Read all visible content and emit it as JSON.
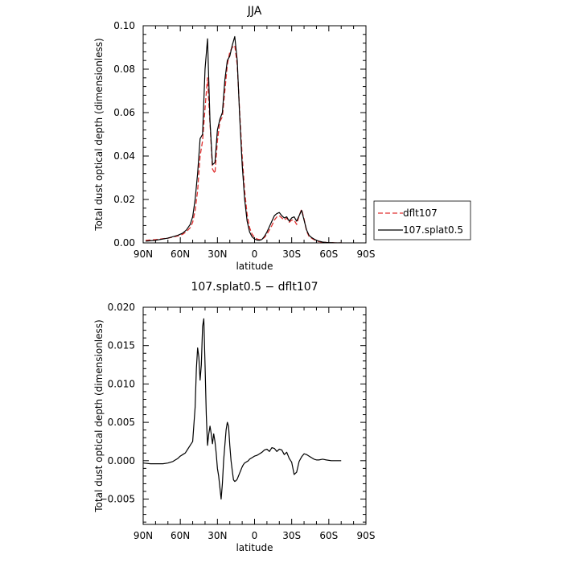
{
  "chart_data": [
    {
      "type": "line",
      "title": "JJA",
      "xlabel": "latitude",
      "ylabel": "Total dust optical depth (dimensionless)",
      "xlim": [
        90,
        -90
      ],
      "ylim": [
        0,
        0.1
      ],
      "x_ticks": [
        90,
        60,
        30,
        0,
        -30,
        -60,
        -90
      ],
      "x_tick_labels": [
        "90N",
        "60N",
        "30N",
        "0",
        "30S",
        "60S",
        "90S"
      ],
      "y_ticks": [
        0,
        0.02,
        0.04,
        0.06,
        0.08,
        0.1
      ],
      "y_tick_labels": [
        "0.00",
        "0.02",
        "0.04",
        "0.06",
        "0.08",
        "0.10"
      ],
      "legend": "right",
      "series": [
        {
          "name": "dflt107",
          "color": "#e03030",
          "style": "dashed",
          "x": [
            88,
            80,
            70,
            62,
            58,
            55,
            52,
            50,
            48,
            46,
            44,
            42,
            40,
            38,
            36,
            34,
            32,
            30,
            28,
            26,
            24,
            22,
            20,
            18,
            16,
            14,
            12,
            10,
            8,
            6,
            4,
            2,
            0,
            -2,
            -4,
            -6,
            -8,
            -10,
            -12,
            -14,
            -16,
            -18,
            -20,
            -22,
            -24,
            -26,
            -28,
            -30,
            -32,
            -34,
            -36,
            -38,
            -40,
            -42,
            -44,
            -46,
            -48,
            -50,
            -52,
            -55,
            -58,
            -60,
            -62,
            -65,
            -68,
            -70
          ],
          "y": [
            0.0012,
            0.0015,
            0.0022,
            0.0032,
            0.004,
            0.0052,
            0.007,
            0.0095,
            0.015,
            0.024,
            0.04,
            0.047,
            0.062,
            0.076,
            0.055,
            0.034,
            0.032,
            0.047,
            0.056,
            0.058,
            0.07,
            0.082,
            0.088,
            0.09,
            0.091,
            0.082,
            0.06,
            0.04,
            0.024,
            0.013,
            0.007,
            0.004,
            0.0025,
            0.0018,
            0.0015,
            0.0017,
            0.0025,
            0.004,
            0.006,
            0.008,
            0.0105,
            0.012,
            0.0125,
            0.0115,
            0.0105,
            0.0115,
            0.0095,
            0.0105,
            0.0105,
            0.0085,
            0.0125,
            0.0155,
            0.011,
            0.0055,
            0.003,
            0.0022,
            0.0015,
            0.001,
            0.0006,
            0.0003,
            0.0002,
            0.0001,
            0.0001,
            0,
            0,
            0
          ]
        },
        {
          "name": "107.splat0.5",
          "color": "#000000",
          "style": "solid",
          "x": [
            88,
            80,
            70,
            62,
            58,
            55,
            52,
            50,
            48,
            46,
            44,
            42,
            40,
            38,
            36,
            34,
            32,
            30,
            28,
            26,
            24,
            22,
            20,
            18,
            16,
            14,
            12,
            10,
            8,
            6,
            4,
            2,
            0,
            -2,
            -4,
            -6,
            -8,
            -10,
            -12,
            -14,
            -16,
            -18,
            -20,
            -22,
            -24,
            -26,
            -28,
            -30,
            -32,
            -34,
            -36,
            -38,
            -40,
            -42,
            -44,
            -46,
            -48,
            -50,
            -52,
            -55,
            -58,
            -60,
            -62,
            -65,
            -68,
            -70
          ],
          "y": [
            0.0008,
            0.0012,
            0.0022,
            0.0035,
            0.0045,
            0.006,
            0.0085,
            0.012,
            0.02,
            0.032,
            0.048,
            0.05,
            0.08,
            0.094,
            0.056,
            0.036,
            0.037,
            0.052,
            0.057,
            0.06,
            0.075,
            0.084,
            0.086,
            0.091,
            0.095,
            0.084,
            0.058,
            0.036,
            0.02,
            0.01,
            0.005,
            0.0028,
            0.0018,
            0.0013,
            0.0012,
            0.0016,
            0.003,
            0.005,
            0.0075,
            0.01,
            0.0125,
            0.0135,
            0.014,
            0.0125,
            0.0115,
            0.012,
            0.01,
            0.0115,
            0.012,
            0.01,
            0.0125,
            0.015,
            0.0105,
            0.006,
            0.0035,
            0.0025,
            0.0018,
            0.0012,
            0.0008,
            0.0004,
            0.0002,
            0.0001,
            0.0001,
            0,
            0,
            0
          ]
        }
      ]
    },
    {
      "type": "line",
      "title": "107.splat0.5 − dflt107",
      "xlabel": "latitude",
      "ylabel": "Total dust optical depth (dimensionless)",
      "xlim": [
        90,
        -90
      ],
      "ylim": [
        -0.0083,
        0.02
      ],
      "x_ticks": [
        90,
        60,
        30,
        0,
        -30,
        -60,
        -90
      ],
      "x_tick_labels": [
        "90N",
        "60N",
        "30N",
        "0",
        "30S",
        "60S",
        "90S"
      ],
      "y_ticks": [
        -0.005,
        0,
        0.005,
        0.01,
        0.015,
        0.02
      ],
      "y_tick_labels": [
        "−0.005",
        "0.000",
        "0.005",
        "0.010",
        "0.015",
        "0.020"
      ],
      "series": [
        {
          "color": "#000000",
          "style": "solid",
          "x": [
            90,
            84,
            78,
            74,
            70,
            66,
            62,
            60,
            58,
            56,
            54,
            52,
            50,
            48,
            47,
            46,
            45,
            44,
            43,
            42,
            41,
            40,
            39,
            38,
            37,
            36,
            35,
            34,
            33,
            32,
            31,
            30,
            29,
            28,
            27,
            26,
            25,
            24,
            23,
            22,
            21,
            20,
            19,
            18,
            17,
            16,
            15,
            14,
            13,
            12,
            11,
            10,
            9,
            8,
            7,
            6,
            5,
            4,
            2,
            0,
            -2,
            -4,
            -6,
            -8,
            -10,
            -12,
            -14,
            -16,
            -18,
            -20,
            -22,
            -24,
            -26,
            -28,
            -30,
            -32,
            -34,
            -36,
            -38,
            -40,
            -42,
            -44,
            -46,
            -48,
            -50,
            -52,
            -55,
            -58,
            -62,
            -66,
            -70
          ],
          "y": [
            -0.0003,
            -0.0004,
            -0.0004,
            -0.0004,
            -0.0003,
            -0.0001,
            0.0003,
            0.0006,
            0.0008,
            0.001,
            0.0015,
            0.002,
            0.0025,
            0.007,
            0.012,
            0.0147,
            0.0135,
            0.0105,
            0.0125,
            0.0175,
            0.0185,
            0.0125,
            0.006,
            0.002,
            0.0035,
            0.0045,
            0.0035,
            0.0022,
            0.0035,
            0.0025,
            0.001,
            -0.001,
            -0.002,
            -0.0035,
            -0.005,
            -0.003,
            0,
            0.002,
            0.004,
            0.005,
            0.0045,
            0.002,
            0,
            -0.0013,
            -0.0025,
            -0.0027,
            -0.0026,
            -0.0024,
            -0.002,
            -0.0016,
            -0.0012,
            -0.0008,
            -0.0005,
            -0.0003,
            -0.0002,
            -0.0001,
            0,
            0.0002,
            0.0004,
            0.0006,
            0.0007,
            0.0009,
            0.0011,
            0.0014,
            0.0015,
            0.0012,
            0.0017,
            0.0016,
            0.0012,
            0.0015,
            0.0014,
            0.0008,
            0.0011,
            0.0003,
            -0.0002,
            -0.0018,
            -0.0015,
            -0.0001,
            0.0005,
            0.0009,
            0.0008,
            0.0006,
            0.0004,
            0.0002,
            0.0001,
            0.0001,
            0.0002,
            0.0001,
            0,
            0,
            0
          ]
        }
      ]
    }
  ]
}
